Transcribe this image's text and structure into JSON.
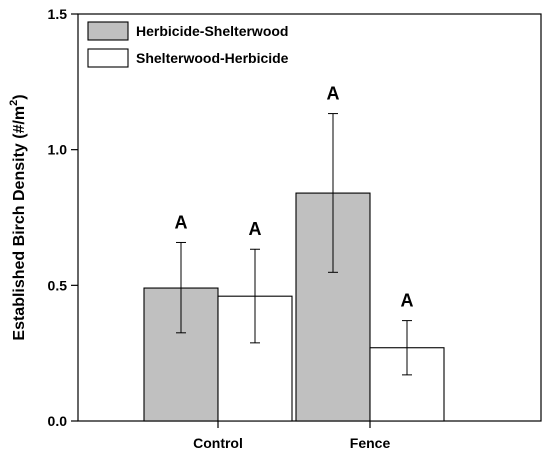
{
  "chart_data": {
    "type": "bar",
    "title": "",
    "xlabel": "",
    "ylabel": "Established Birch Density (#/m",
    "ylabel_superscript": "2",
    "ylabel_suffix": ")",
    "categories": [
      "Control",
      "Fence"
    ],
    "ylim": [
      0.0,
      1.5
    ],
    "yticks": [
      "0.0",
      "0.5",
      "1.0",
      "1.5"
    ],
    "ytick_values": [
      0.0,
      0.5,
      1.0,
      1.5
    ],
    "grid": false,
    "legend_position": "top-left",
    "series": [
      {
        "name": "Herbicide-Shelterwood",
        "color": "#c0c0c0",
        "values": [
          0.49,
          0.84
        ],
        "error_low": [
          0.325,
          0.548
        ],
        "error_high": [
          0.658,
          1.133
        ],
        "letters": [
          "A",
          "A"
        ]
      },
      {
        "name": "Shelterwood-Herbicide",
        "color": "#ffffff",
        "values": [
          0.46,
          0.27
        ],
        "error_low": [
          0.288,
          0.17
        ],
        "error_high": [
          0.633,
          0.37
        ],
        "letters": [
          "A",
          "A"
        ]
      }
    ]
  }
}
